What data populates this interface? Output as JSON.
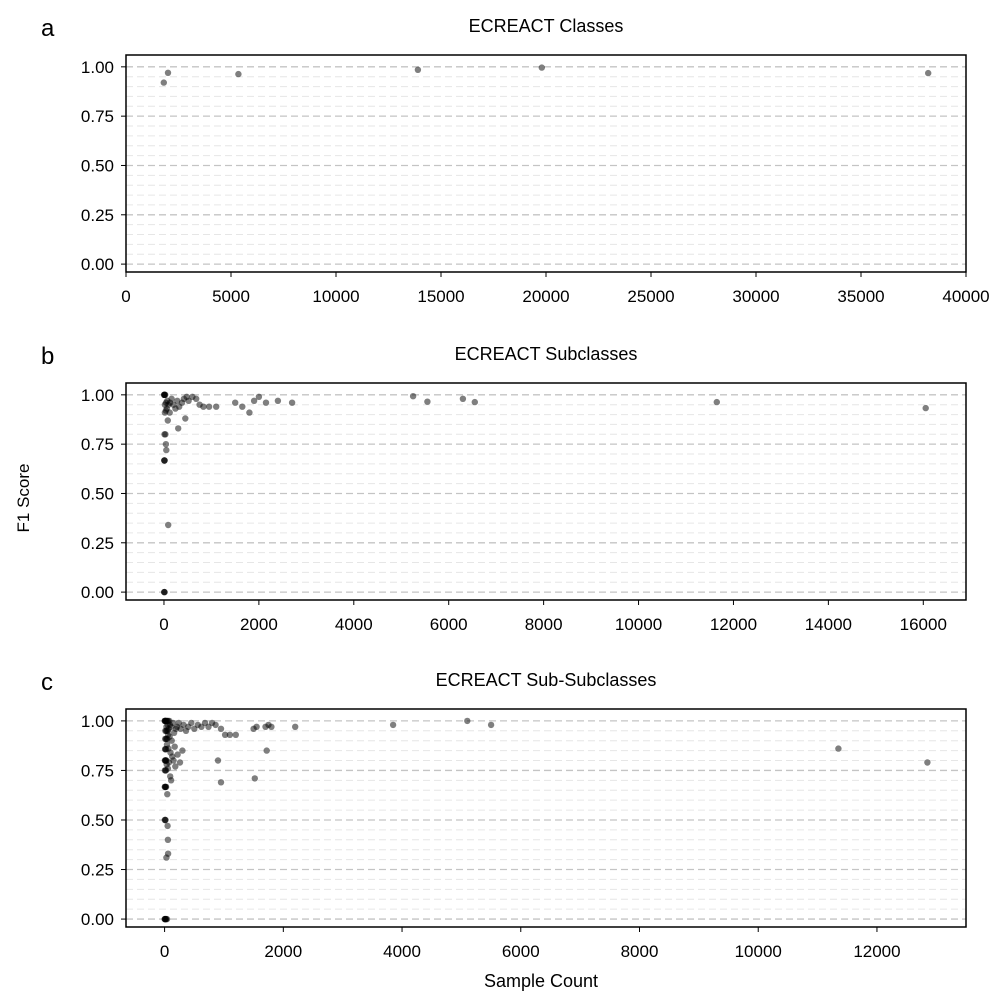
{
  "figure": {
    "ylabel": "F1 Score",
    "xlabel": "Sample Count"
  },
  "chart_data": [
    {
      "type": "scatter",
      "panel_letter": "a",
      "title": "ECREACT Classes",
      "xlim": [
        0,
        40000
      ],
      "ylim": [
        -0.04,
        1.06
      ],
      "xticks": [
        "0",
        "5000",
        "10000",
        "15000",
        "20000",
        "25000",
        "30000",
        "35000",
        "40000"
      ],
      "yticks": [
        "0.00",
        "0.25",
        "0.50",
        "0.75",
        "1.00"
      ],
      "points": [
        [
          1800,
          0.92
        ],
        [
          2000,
          0.97
        ],
        [
          5350,
          0.963
        ],
        [
          13900,
          0.985
        ],
        [
          19800,
          0.996
        ],
        [
          38200,
          0.968
        ]
      ]
    },
    {
      "type": "scatter",
      "panel_letter": "b",
      "title": "ECREACT Subclasses",
      "xlim": [
        -800,
        16900
      ],
      "ylim": [
        -0.04,
        1.06
      ],
      "xticks": [
        "0",
        "2000",
        "4000",
        "6000",
        "8000",
        "10000",
        "12000",
        "14000",
        "16000"
      ],
      "yticks": [
        "0.00",
        "0.25",
        "0.50",
        "0.75",
        "1.00"
      ],
      "points": [
        [
          3,
          1.0
        ],
        [
          6,
          1.0
        ],
        [
          10,
          1.0
        ],
        [
          18,
          1.0
        ],
        [
          25,
          1.0
        ],
        [
          4,
          0.0
        ],
        [
          8,
          0.0
        ],
        [
          14,
          0.0
        ],
        [
          5,
          0.667
        ],
        [
          9,
          0.667
        ],
        [
          15,
          0.667
        ],
        [
          12,
          0.8
        ],
        [
          30,
          0.8
        ],
        [
          20,
          0.91
        ],
        [
          40,
          0.92
        ],
        [
          60,
          0.93
        ],
        [
          20,
          0.95
        ],
        [
          45,
          0.96
        ],
        [
          70,
          0.97
        ],
        [
          95,
          0.95
        ],
        [
          130,
          0.96
        ],
        [
          160,
          0.98
        ],
        [
          200,
          0.95
        ],
        [
          240,
          0.93
        ],
        [
          280,
          0.97
        ],
        [
          320,
          0.94
        ],
        [
          380,
          0.96
        ],
        [
          420,
          0.98
        ],
        [
          480,
          0.99
        ],
        [
          520,
          0.97
        ],
        [
          600,
          0.99
        ],
        [
          680,
          0.98
        ],
        [
          750,
          0.95
        ],
        [
          830,
          0.94
        ],
        [
          950,
          0.94
        ],
        [
          1100,
          0.94
        ],
        [
          40,
          0.75
        ],
        [
          50,
          0.72
        ],
        [
          80,
          0.87
        ],
        [
          120,
          0.91
        ],
        [
          300,
          0.83
        ],
        [
          450,
          0.88
        ],
        [
          90,
          0.34
        ],
        [
          1500,
          0.96
        ],
        [
          1650,
          0.94
        ],
        [
          1800,
          0.91
        ],
        [
          1900,
          0.97
        ],
        [
          2000,
          0.99
        ],
        [
          2150,
          0.96
        ],
        [
          2400,
          0.97
        ],
        [
          2700,
          0.96
        ],
        [
          5250,
          0.993
        ],
        [
          5550,
          0.965
        ],
        [
          6300,
          0.98
        ],
        [
          6550,
          0.963
        ],
        [
          11650,
          0.963
        ],
        [
          16050,
          0.933
        ]
      ]
    },
    {
      "type": "scatter",
      "panel_letter": "c",
      "title": "ECREACT Sub-Subclasses",
      "xlim": [
        -650,
        13500
      ],
      "ylim": [
        -0.04,
        1.06
      ],
      "xticks": [
        "0",
        "2000",
        "4000",
        "6000",
        "8000",
        "10000",
        "12000"
      ],
      "yticks": [
        "0.00",
        "0.25",
        "0.50",
        "0.75",
        "1.00"
      ],
      "points": [
        [
          2,
          1.0
        ],
        [
          5,
          1.0
        ],
        [
          8,
          1.0
        ],
        [
          12,
          1.0
        ],
        [
          18,
          1.0
        ],
        [
          25,
          1.0
        ],
        [
          35,
          1.0
        ],
        [
          45,
          1.0
        ],
        [
          60,
          1.0
        ],
        [
          80,
          1.0
        ],
        [
          2,
          0.0
        ],
        [
          5,
          0.0
        ],
        [
          9,
          0.0
        ],
        [
          14,
          0.0
        ],
        [
          20,
          0.0
        ],
        [
          28,
          0.0
        ],
        [
          40,
          0.0
        ],
        [
          3,
          0.667
        ],
        [
          7,
          0.667
        ],
        [
          12,
          0.667
        ],
        [
          18,
          0.667
        ],
        [
          26,
          0.667
        ],
        [
          4,
          0.5
        ],
        [
          10,
          0.5
        ],
        [
          16,
          0.5
        ],
        [
          5,
          0.8
        ],
        [
          10,
          0.8
        ],
        [
          15,
          0.8
        ],
        [
          22,
          0.8
        ],
        [
          30,
          0.8
        ],
        [
          6,
          0.75
        ],
        [
          14,
          0.75
        ],
        [
          24,
          0.75
        ],
        [
          8,
          0.857
        ],
        [
          16,
          0.857
        ],
        [
          26,
          0.857
        ],
        [
          10,
          0.909
        ],
        [
          20,
          0.909
        ],
        [
          32,
          0.909
        ],
        [
          45,
          0.909
        ],
        [
          12,
          0.95
        ],
        [
          25,
          0.95
        ],
        [
          38,
          0.95
        ],
        [
          55,
          0.95
        ],
        [
          70,
          0.96
        ],
        [
          30,
          0.97
        ],
        [
          50,
          0.98
        ],
        [
          90,
          0.98
        ],
        [
          110,
          0.97
        ],
        [
          140,
          0.99
        ],
        [
          60,
          0.93
        ],
        [
          85,
          0.92
        ],
        [
          120,
          0.9
        ],
        [
          160,
          0.94
        ],
        [
          190,
          0.96
        ],
        [
          40,
          0.88
        ],
        [
          65,
          0.86
        ],
        [
          100,
          0.84
        ],
        [
          130,
          0.82
        ],
        [
          170,
          0.87
        ],
        [
          35,
          0.78
        ],
        [
          55,
          0.76
        ],
        [
          75,
          0.79
        ],
        [
          95,
          0.72
        ],
        [
          110,
          0.7
        ],
        [
          150,
          0.8
        ],
        [
          180,
          0.77
        ],
        [
          220,
          0.83
        ],
        [
          260,
          0.79
        ],
        [
          300,
          0.85
        ],
        [
          210,
          0.97
        ],
        [
          240,
          0.99
        ],
        [
          270,
          0.96
        ],
        [
          320,
          0.98
        ],
        [
          360,
          0.95
        ],
        [
          400,
          0.97
        ],
        [
          450,
          0.99
        ],
        [
          500,
          0.96
        ],
        [
          560,
          0.98
        ],
        [
          620,
          0.97
        ],
        [
          680,
          0.99
        ],
        [
          740,
          0.97
        ],
        [
          800,
          0.99
        ],
        [
          860,
          0.98
        ],
        [
          950,
          0.96
        ],
        [
          1020,
          0.93
        ],
        [
          1100,
          0.93
        ],
        [
          1200,
          0.93
        ],
        [
          900,
          0.8
        ],
        [
          950,
          0.69
        ],
        [
          45,
          0.63
        ],
        [
          50,
          0.47
        ],
        [
          55,
          0.4
        ],
        [
          60,
          0.33
        ],
        [
          30,
          0.31
        ],
        [
          1500,
          0.96
        ],
        [
          1550,
          0.97
        ],
        [
          1520,
          0.71
        ],
        [
          1700,
          0.97
        ],
        [
          1750,
          0.98
        ],
        [
          1800,
          0.97
        ],
        [
          1720,
          0.85
        ],
        [
          2200,
          0.97
        ],
        [
          3850,
          0.98
        ],
        [
          5100,
          1.0
        ],
        [
          5500,
          0.98
        ],
        [
          11350,
          0.86
        ],
        [
          12850,
          0.79
        ]
      ]
    }
  ]
}
